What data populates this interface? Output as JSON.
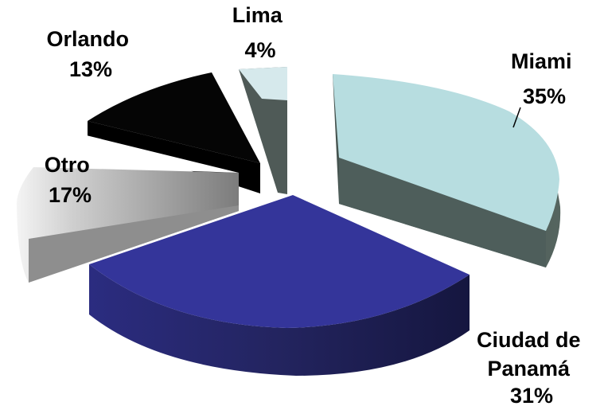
{
  "chart_data": {
    "type": "pie",
    "style": "3d-exploded",
    "title": "",
    "slices": [
      {
        "label_lines": [
          "Miami"
        ],
        "value_label": "35%",
        "value": 35,
        "color": "#b7dde0",
        "side_color": "#4e5e5b"
      },
      {
        "label_lines": [
          "Ciudad de",
          "Panamá"
        ],
        "value_label": "31%",
        "value": 31,
        "color": "#34359a",
        "side_color": "#25266f"
      },
      {
        "label_lines": [
          "Otro"
        ],
        "value_label": "17%",
        "value": 17,
        "color": "#ffffff",
        "side_color": "#8a8a8a"
      },
      {
        "label_lines": [
          "Orlando"
        ],
        "value_label": "13%",
        "value": 13,
        "color": "#050505",
        "side_color": "#000000"
      },
      {
        "label_lines": [
          "Lima"
        ],
        "value_label": "4%",
        "value": 4,
        "color": "#d6e9ec",
        "side_color": "#4f5a57"
      }
    ]
  }
}
